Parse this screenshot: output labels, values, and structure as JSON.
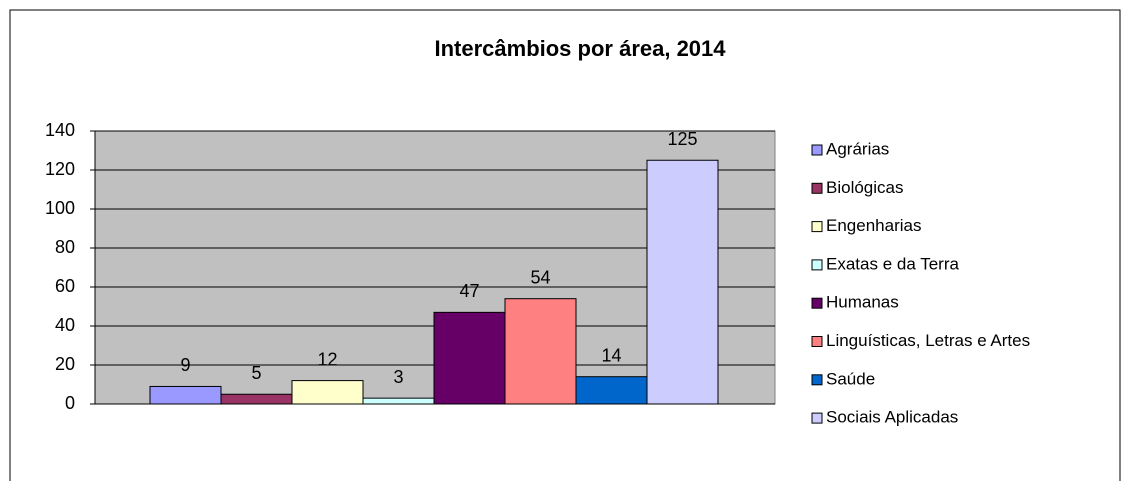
{
  "chart_data": {
    "type": "bar",
    "title": "Intercâmbios por área, 2014",
    "series": [
      {
        "name": "Agrárias",
        "color": "#9999ff",
        "values": [
          9
        ]
      },
      {
        "name": "Biológicas",
        "color": "#993366",
        "values": [
          5
        ]
      },
      {
        "name": "Engenharias",
        "color": "#ffffcc",
        "values": [
          12
        ]
      },
      {
        "name": "Exatas e da Terra",
        "color": "#ccffff",
        "values": [
          3
        ]
      },
      {
        "name": "Humanas",
        "color": "#660066",
        "values": [
          47
        ]
      },
      {
        "name": "Linguísticas, Letras e Artes",
        "color": "#ff8080",
        "values": [
          54
        ]
      },
      {
        "name": "Saúde",
        "color": "#0066cc",
        "values": [
          14
        ]
      },
      {
        "name": "Sociais Aplicadas",
        "color": "#ccccff",
        "values": [
          125
        ]
      }
    ],
    "ylim": [
      0,
      140
    ],
    "yticks": [
      0,
      20,
      40,
      60,
      80,
      100,
      120,
      140
    ],
    "grid": true,
    "legend": "right"
  }
}
